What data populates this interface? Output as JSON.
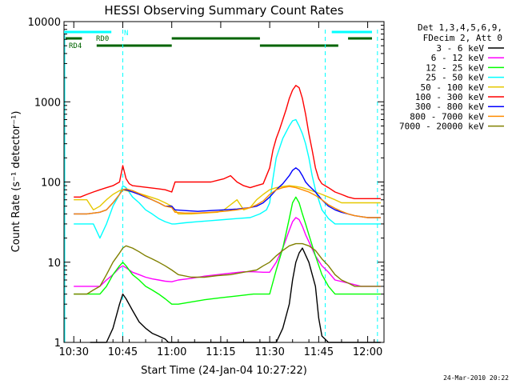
{
  "chart_data": {
    "type": "line",
    "title": "HESSI Observing Summary Count Rates",
    "xlabel": "Start Time (24-Jan-04 10:27:22)",
    "ylabel": "Count Rate (s⁻¹ detector⁻¹)",
    "y_scale": "log",
    "ylim": [
      1,
      10000
    ],
    "xlim_minutes": [
      -3,
      95
    ],
    "x_ticks": [
      "10:30",
      "10:45",
      "11:00",
      "11:15",
      "11:30",
      "11:45",
      "12:00"
    ],
    "x_ticks_minutes": [
      0,
      15,
      30,
      45,
      60,
      75,
      90
    ],
    "y_ticks": [
      "1",
      "10",
      "100",
      "1000",
      "10000"
    ],
    "y_tick_values": [
      1,
      10,
      100,
      1000,
      10000
    ],
    "timestamp": "24-Mar-2010 20:22",
    "legend_header": [
      "Det 1,3,4,5,6,9,",
      "FDecim 2, Att 0"
    ],
    "legend_placement": "top-right",
    "attenuator_labels": [
      "N",
      "RD0",
      "RD4"
    ],
    "series": [
      {
        "name": "3 - 6 keV",
        "color": "#000000",
        "x": [
          5,
          7,
          10,
          12,
          14,
          15,
          16,
          18,
          20,
          22,
          24,
          26,
          28,
          29,
          30,
          32,
          36,
          40,
          45,
          50,
          55,
          58,
          59,
          60,
          62,
          64,
          66,
          67,
          68,
          69,
          70,
          72,
          74,
          75,
          76,
          78,
          80,
          85,
          90,
          94
        ],
        "y": [
          1,
          1,
          1,
          1.5,
          3,
          4,
          3.5,
          2.5,
          1.8,
          1.5,
          1.3,
          1.2,
          1.1,
          1,
          1,
          1,
          1,
          1,
          1,
          1,
          1,
          1,
          1,
          1,
          1,
          1.5,
          3,
          6,
          10,
          13,
          15,
          10,
          5,
          2,
          1.2,
          1,
          1,
          1,
          1,
          1
        ]
      },
      {
        "name": "6 - 12 keV",
        "color": "#ff00ff",
        "x": [
          0,
          2,
          4,
          6,
          8,
          10,
          12,
          14,
          15,
          16,
          18,
          20,
          22,
          24,
          26,
          28,
          30,
          32,
          36,
          40,
          44,
          48,
          52,
          55,
          58,
          60,
          62,
          64,
          66,
          67,
          68,
          69,
          70,
          71,
          72,
          74,
          76,
          78,
          80,
          84,
          88,
          92,
          94
        ],
        "y": [
          5,
          5,
          5,
          5,
          5,
          6,
          7,
          8.5,
          9,
          8.5,
          7.5,
          7,
          6.5,
          6.2,
          6,
          5.8,
          5.7,
          6,
          6.3,
          6.7,
          7,
          7.3,
          7.6,
          7.6,
          7.5,
          7.5,
          10,
          15,
          25,
          32,
          36,
          34,
          28,
          22,
          18,
          12,
          9,
          7.5,
          6,
          5.5,
          5,
          5,
          5
        ]
      },
      {
        "name": "12 - 25 keV",
        "color": "#00ff00",
        "x": [
          0,
          4,
          6,
          8,
          10,
          12,
          14,
          15,
          16,
          18,
          20,
          22,
          24,
          26,
          28,
          30,
          32,
          36,
          40,
          45,
          50,
          55,
          58,
          59,
          60,
          62,
          64,
          66,
          67,
          68,
          69,
          70,
          71,
          72,
          74,
          76,
          78,
          80,
          85,
          90,
          94
        ],
        "y": [
          4,
          4,
          4,
          4,
          5,
          7,
          9,
          10,
          9,
          7,
          6,
          5,
          4.5,
          4,
          3.5,
          3,
          3,
          3.2,
          3.4,
          3.6,
          3.8,
          4,
          4,
          4,
          4,
          8,
          15,
          35,
          55,
          65,
          55,
          40,
          30,
          22,
          12,
          7,
          5,
          4,
          4,
          4,
          4
        ]
      },
      {
        "name": "25 - 50 keV",
        "color": "#00ffff",
        "x": [
          0,
          4,
          6,
          8,
          10,
          12,
          14,
          15,
          16,
          18,
          20,
          22,
          24,
          26,
          28,
          30,
          31,
          34,
          38,
          42,
          46,
          50,
          54,
          57,
          59,
          60,
          61,
          62,
          64,
          66,
          67,
          68,
          69,
          70,
          71,
          72,
          73,
          74,
          76,
          78,
          80,
          82,
          86,
          90,
          94
        ],
        "y": [
          30,
          30,
          30,
          20,
          30,
          50,
          70,
          90,
          85,
          65,
          55,
          45,
          40,
          35,
          32,
          30,
          30,
          31,
          32,
          33,
          34,
          35,
          36,
          40,
          45,
          55,
          110,
          200,
          350,
          500,
          580,
          600,
          500,
          400,
          300,
          200,
          120,
          80,
          45,
          35,
          30,
          30,
          30,
          30,
          30
        ]
      },
      {
        "name": "50 - 100 keV",
        "color": "#e6c800",
        "x": [
          0,
          2,
          4,
          6,
          8,
          10,
          12,
          14,
          15,
          16,
          18,
          20,
          22,
          24,
          26,
          28,
          30,
          32,
          36,
          40,
          44,
          46,
          48,
          50,
          52,
          54,
          56,
          58,
          60,
          62,
          64,
          66,
          68,
          70,
          72,
          74,
          76,
          78,
          80,
          82,
          86,
          90,
          94
        ],
        "y": [
          60,
          60,
          60,
          45,
          50,
          60,
          70,
          78,
          80,
          78,
          75,
          72,
          68,
          64,
          60,
          55,
          50,
          40,
          40,
          41,
          42,
          45,
          52,
          60,
          45,
          48,
          60,
          70,
          80,
          85,
          88,
          90,
          88,
          85,
          80,
          75,
          70,
          65,
          60,
          55,
          55,
          55,
          55
        ]
      },
      {
        "name": "100 - 300 keV",
        "color": "#ff0000",
        "x": [
          0,
          2,
          4,
          6,
          8,
          10,
          12,
          14,
          15,
          16,
          17,
          18,
          20,
          22,
          24,
          26,
          28,
          30,
          31,
          34,
          38,
          42,
          44,
          46,
          48,
          50,
          52,
          54,
          56,
          58,
          60,
          61,
          62,
          63,
          64,
          65,
          66,
          67,
          68,
          69,
          70,
          71,
          72,
          73,
          74,
          75,
          76,
          78,
          80,
          82,
          84,
          86,
          90,
          94
        ],
        "y": [
          65,
          65,
          70,
          75,
          80,
          85,
          90,
          100,
          160,
          110,
          95,
          90,
          88,
          86,
          84,
          82,
          80,
          75,
          100,
          100,
          100,
          100,
          105,
          110,
          120,
          100,
          90,
          85,
          90,
          95,
          150,
          250,
          350,
          450,
          600,
          800,
          1100,
          1400,
          1600,
          1500,
          1100,
          700,
          400,
          250,
          150,
          110,
          95,
          85,
          75,
          70,
          65,
          62,
          62,
          62
        ]
      },
      {
        "name": "300 - 800 keV",
        "color": "#0000ff",
        "x": [
          0,
          4,
          8,
          10,
          12,
          14,
          15,
          16,
          18,
          20,
          22,
          24,
          26,
          28,
          30,
          31,
          34,
          38,
          42,
          46,
          50,
          54,
          56,
          58,
          60,
          62,
          64,
          66,
          67,
          68,
          69,
          70,
          71,
          72,
          74,
          76,
          78,
          80,
          82,
          84,
          86,
          88,
          90,
          94
        ],
        "y": [
          40,
          40,
          42,
          45,
          55,
          70,
          80,
          80,
          75,
          70,
          65,
          60,
          55,
          50,
          50,
          45,
          44,
          43,
          44,
          45,
          46,
          48,
          50,
          55,
          65,
          80,
          95,
          120,
          140,
          150,
          140,
          120,
          100,
          90,
          75,
          60,
          50,
          45,
          42,
          40,
          38,
          37,
          36,
          36
        ]
      },
      {
        "name": "800 - 7000 keV",
        "color": "#ff8c00",
        "x": [
          0,
          4,
          8,
          10,
          12,
          14,
          15,
          16,
          18,
          20,
          22,
          24,
          26,
          28,
          30,
          31,
          34,
          38,
          42,
          46,
          50,
          54,
          56,
          58,
          60,
          62,
          64,
          66,
          68,
          70,
          72,
          74,
          76,
          78,
          80,
          82,
          84,
          86,
          88,
          90,
          94
        ],
        "y": [
          40,
          40,
          42,
          45,
          55,
          70,
          80,
          82,
          78,
          72,
          66,
          60,
          55,
          50,
          48,
          42,
          41,
          41,
          42,
          43,
          45,
          48,
          52,
          58,
          70,
          80,
          85,
          88,
          85,
          80,
          75,
          68,
          60,
          52,
          47,
          43,
          40,
          38,
          37,
          36,
          36
        ]
      },
      {
        "name": "7000 - 20000 keV",
        "color": "#808000",
        "x": [
          0,
          4,
          6,
          8,
          10,
          12,
          14,
          15,
          16,
          18,
          20,
          22,
          24,
          26,
          28,
          30,
          32,
          36,
          40,
          44,
          48,
          52,
          56,
          58,
          60,
          62,
          64,
          66,
          68,
          70,
          72,
          74,
          76,
          78,
          80,
          82,
          84,
          86,
          90,
          94
        ],
        "y": [
          4,
          4,
          4.5,
          5,
          7,
          10,
          13,
          15,
          16,
          15,
          13.5,
          12,
          11,
          10,
          9,
          8,
          7,
          6.5,
          6.5,
          6.8,
          7,
          7.5,
          8,
          9,
          10,
          12,
          14,
          16,
          17,
          17,
          16,
          14,
          11,
          9,
          7,
          6,
          5.5,
          5,
          5,
          5
        ]
      }
    ]
  }
}
